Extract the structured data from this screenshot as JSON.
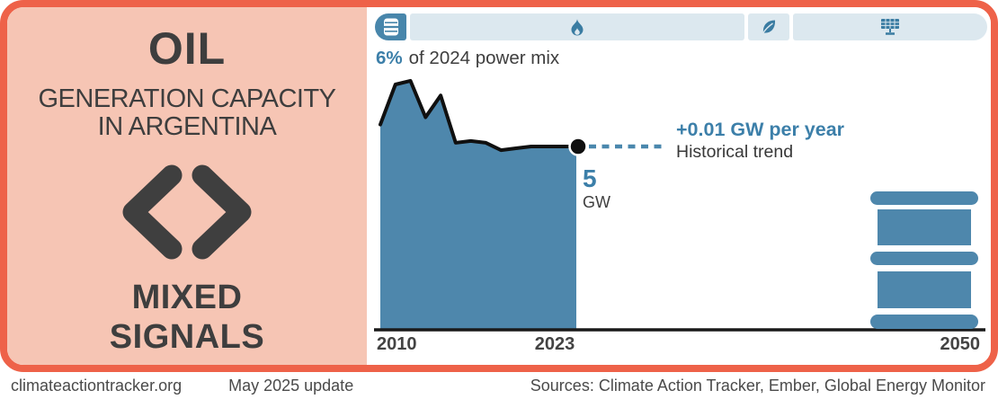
{
  "left_panel": {
    "title": "OIL",
    "subtitle_line1": "GENERATION CAPACITY",
    "subtitle_line2": "IN ARGENTINA",
    "verdict_line1": "MIXED",
    "verdict_line2": "SIGNALS"
  },
  "tabs": [
    {
      "id": "oil",
      "icon": "oil-barrel-icon",
      "active": true
    },
    {
      "id": "gas",
      "icon": "flame-icon",
      "active": false
    },
    {
      "id": "bioenergy",
      "icon": "leaf-icon",
      "active": false
    },
    {
      "id": "solar",
      "icon": "solar-panel-icon",
      "active": false
    }
  ],
  "power_mix": {
    "value": "6%",
    "label": "of 2024 power mix"
  },
  "chart_data": {
    "type": "area",
    "title": "Oil generation capacity in Argentina",
    "x": [
      2010,
      2011,
      2012,
      2013,
      2014,
      2015,
      2016,
      2017,
      2018,
      2019,
      2020,
      2021,
      2022,
      2023
    ],
    "values": [
      5.6,
      6.7,
      6.8,
      5.8,
      6.4,
      5.1,
      5.15,
      5.1,
      4.9,
      4.95,
      5.0,
      5.0,
      5.0,
      5.0
    ],
    "unit": "GW",
    "ylabel": "GW",
    "xlim": [
      2010,
      2050
    ],
    "ylim": [
      0,
      7.5
    ],
    "x_ticks": [
      "2010",
      "2023",
      "2050"
    ],
    "current_year": 2023,
    "current_value": 5,
    "grid": false,
    "legend": false
  },
  "annotations": {
    "trend_value": "+0.01 GW per year",
    "trend_label": "Historical trend",
    "end_value": "5",
    "end_unit": "GW"
  },
  "x_axis": {
    "start": "2010",
    "current": "2023",
    "end": "2050"
  },
  "footer": {
    "site": "climateactiontracker.org",
    "update": "May 2025 update",
    "sources": "Sources: Climate Action Tracker, Ember, Global Energy Monitor"
  },
  "colors": {
    "border_orange": "#ee6249",
    "panel_pink": "#f6c5b4",
    "area_blue": "#4e87ac",
    "accent_blue": "#3c7fa9",
    "tab_inactive": "#dce8ef",
    "tab_active": "#4886ab",
    "text_dark": "#3e3e3e"
  }
}
